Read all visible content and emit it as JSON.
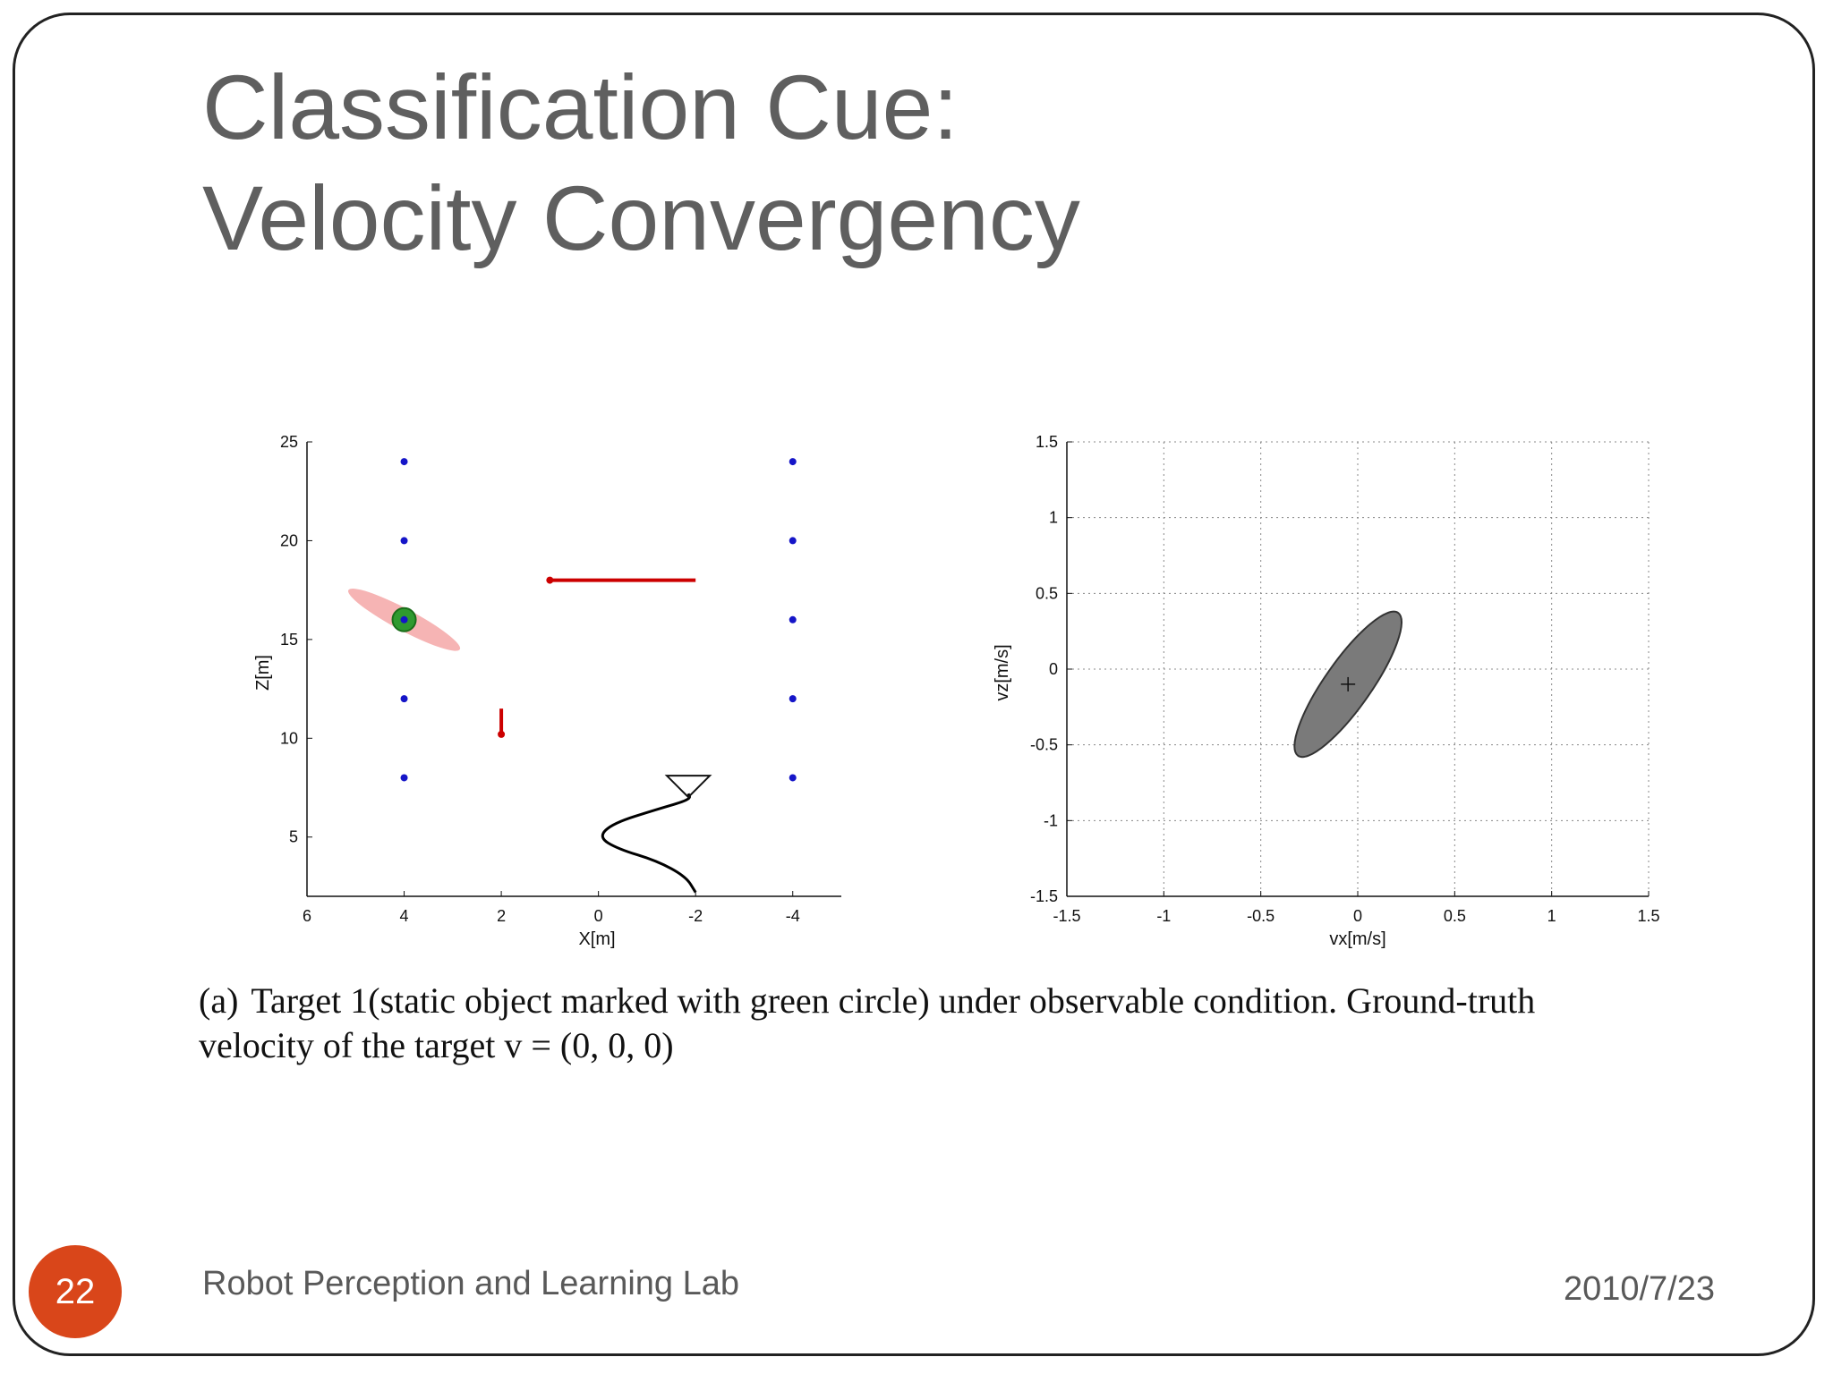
{
  "slide": {
    "title_line1": "Classification Cue:",
    "title_line2": "Velocity Convergency",
    "caption_label": "(a)",
    "caption_line1": "Target 1(static object marked with green circle) under observable condition. Ground-truth",
    "caption_line2": "velocity of the target v = (0, 0, 0)",
    "slide_number": "22",
    "footer_left": "Robot Perception and Learning Lab",
    "footer_right": "2010/7/23",
    "accent_color": "#d9461a"
  },
  "chart_data": [
    {
      "type": "scatter",
      "xlabel": "X[m]",
      "ylabel": "Z[m]",
      "xlim": [
        6,
        -5
      ],
      "ylim": [
        2,
        25
      ],
      "x_reversed": true,
      "xticks": [
        6,
        4,
        2,
        0,
        -2,
        -4
      ],
      "yticks": [
        5,
        10,
        15,
        20,
        25
      ],
      "xtick_labels": [
        "6",
        "4",
        "2",
        "0",
        "-2",
        "-4"
      ],
      "ytick_labels": [
        "5",
        "10",
        "15",
        "20",
        "25"
      ],
      "series": [
        {
          "color": "#1515c8",
          "marker": "dot",
          "x": [
            4,
            4,
            4,
            4,
            4,
            -4,
            -4,
            -4,
            -4,
            -4
          ],
          "y": [
            24,
            20,
            16,
            12,
            8,
            24,
            20,
            16,
            12,
            8
          ]
        },
        {
          "color": "#cc0000",
          "marker": "segment",
          "x": [
            1.0,
            -2.0
          ],
          "y": [
            18,
            18
          ]
        },
        {
          "color": "#cc0000",
          "marker": "segment",
          "x": [
            2.0,
            2.0
          ],
          "y": [
            10.2,
            11.5
          ]
        },
        {
          "color": "#000000",
          "marker": "line",
          "x": [
            -2.0,
            -1.8,
            -1.2,
            -0.4,
            0.0,
            -0.3,
            -1.2,
            -1.9,
            -1.85
          ],
          "y": [
            2.2,
            3.0,
            3.8,
            4.4,
            5.0,
            5.7,
            6.4,
            6.9,
            7.2
          ]
        }
      ],
      "green_circle": {
        "x": 4.0,
        "y": 16.0
      },
      "pink_ellipse": {
        "x": 4.0,
        "y": 16.0,
        "rx": 1.3,
        "ry": 0.55,
        "tilt_deg": 28,
        "color": "#f4a7a7"
      },
      "robot_marker": {
        "x": -1.85,
        "y": 7.2
      }
    },
    {
      "type": "scatter",
      "xlabel": "vx[m/s]",
      "ylabel": "vz[m/s]",
      "xlim": [
        -1.5,
        1.5
      ],
      "ylim": [
        -1.5,
        1.5
      ],
      "xticks": [
        -1.5,
        -1,
        -0.5,
        0,
        0.5,
        1,
        1.5
      ],
      "yticks": [
        -1.5,
        -1,
        -0.5,
        0,
        0.5,
        1,
        1.5
      ],
      "xtick_labels": [
        "-1.5",
        "-1",
        "-0.5",
        "0",
        "0.5",
        "1",
        "1.5"
      ],
      "ytick_labels": [
        "-1.5",
        "-1",
        "-0.5",
        "0",
        "0.5",
        "1",
        "1.5"
      ],
      "grid": true,
      "ellipse": {
        "cx": -0.05,
        "cy": -0.1,
        "major": 0.45,
        "minor": 0.12,
        "tilt_deg": 55,
        "color": "#7a7a7a"
      },
      "center_marker": {
        "x": -0.05,
        "y": -0.1
      }
    }
  ]
}
